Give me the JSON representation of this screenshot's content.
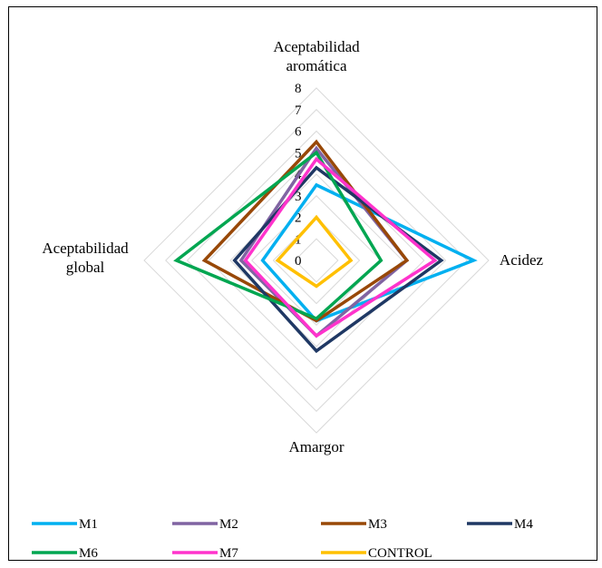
{
  "chart_data": {
    "type": "radar",
    "axes": [
      {
        "label_lines": [
          "Aceptabilidad",
          "aromática"
        ]
      },
      {
        "label_lines": [
          "Acidez"
        ]
      },
      {
        "label_lines": [
          "Amargor"
        ]
      },
      {
        "label_lines": [
          "Aceptabilidad",
          "global"
        ]
      }
    ],
    "rlim": [
      0,
      8
    ],
    "ticks": [
      "0",
      "1",
      "2",
      "3",
      "4",
      "5",
      "6",
      "7",
      "8"
    ],
    "grid": true,
    "legend_position": "bottom",
    "series": [
      {
        "name": "M1",
        "color": "#00B0F0",
        "values": [
          3.5,
          7.3,
          2.8,
          2.5
        ]
      },
      {
        "name": "M2",
        "color": "#8064A2",
        "values": [
          5.2,
          4.2,
          3.5,
          3.5
        ]
      },
      {
        "name": "M3",
        "color": "#984807",
        "values": [
          5.5,
          4.2,
          2.8,
          5.2
        ]
      },
      {
        "name": "M4",
        "color": "#1F3864",
        "values": [
          4.3,
          5.8,
          4.2,
          3.8
        ]
      },
      {
        "name": "M6",
        "color": "#00A651",
        "values": [
          5.0,
          3.0,
          2.7,
          6.5
        ]
      },
      {
        "name": "M7",
        "color": "#FF33CC",
        "values": [
          4.7,
          5.5,
          3.5,
          3.3
        ]
      },
      {
        "name": "CONTROL",
        "color": "#FFC000",
        "values": [
          2.0,
          1.6,
          1.2,
          1.8
        ]
      }
    ]
  }
}
